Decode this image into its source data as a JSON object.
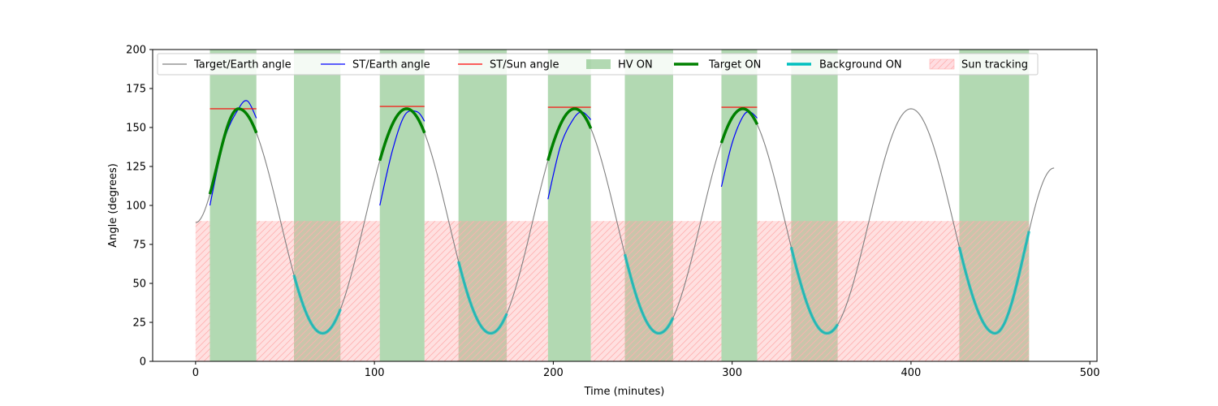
{
  "chart_data": {
    "type": "line",
    "title": "",
    "xlabel": "Time (minutes)",
    "ylabel": "Angle (degrees)",
    "xlim": [
      -24,
      504
    ],
    "ylim": [
      0,
      200
    ],
    "xticks": [
      0,
      100,
      200,
      300,
      400,
      500
    ],
    "yticks": [
      0,
      25,
      50,
      75,
      100,
      125,
      150,
      175,
      200
    ],
    "grid": false,
    "legend_position": "top",
    "target_earth_angle": {
      "name": "Target/Earth angle",
      "color": "#808080",
      "x": [
        0,
        24,
        71,
        118,
        165,
        212,
        259,
        306,
        353,
        400,
        447,
        480
      ],
      "y": [
        89,
        162,
        18,
        162,
        18,
        162,
        18,
        162,
        18,
        162,
        18,
        124
      ]
    },
    "st_earth_angle": {
      "name": "ST/Earth angle",
      "color": "#0000ff",
      "segments": [
        {
          "x": [
            8,
            16,
            24,
            29,
            34
          ],
          "y": [
            100,
            142,
            162,
            167,
            156
          ]
        },
        {
          "x": [
            103,
            110,
            117,
            124,
            128
          ],
          "y": [
            100,
            135,
            158,
            160,
            154
          ]
        },
        {
          "x": [
            197,
            204,
            211,
            216,
            221
          ],
          "y": [
            104,
            138,
            155,
            160,
            155
          ]
        },
        {
          "x": [
            294,
            300,
            306,
            310,
            314
          ],
          "y": [
            112,
            140,
            157,
            160,
            156
          ]
        }
      ]
    },
    "st_sun_angle": {
      "name": "ST/Sun angle",
      "color": "#ff0000",
      "segments": [
        {
          "x": [
            8,
            34
          ],
          "y": [
            162,
            162
          ]
        },
        {
          "x": [
            103,
            128
          ],
          "y": [
            163.5,
            163.5
          ]
        },
        {
          "x": [
            197,
            221
          ],
          "y": [
            163,
            163
          ]
        },
        {
          "x": [
            294,
            314
          ],
          "y": [
            163,
            163
          ]
        }
      ]
    },
    "hv_on": {
      "name": "HV ON",
      "color": "#008000",
      "intervals": [
        [
          8,
          34
        ],
        [
          55,
          81
        ],
        [
          103,
          128
        ],
        [
          147,
          174
        ],
        [
          197,
          221
        ],
        [
          240,
          267
        ],
        [
          294,
          314
        ],
        [
          333,
          359
        ],
        [
          427,
          466
        ]
      ]
    },
    "target_on": {
      "name": "Target ON",
      "color": "#008000",
      "intervals": [
        [
          8,
          34
        ],
        [
          103,
          128
        ],
        [
          197,
          221
        ],
        [
          294,
          314
        ]
      ]
    },
    "background_on": {
      "name": "Background ON",
      "color": "#00bfbf",
      "intervals": [
        [
          55,
          81
        ],
        [
          147,
          174
        ],
        [
          240,
          267
        ],
        [
          333,
          359
        ],
        [
          427,
          466
        ]
      ]
    },
    "sun_tracking": {
      "name": "Sun tracking",
      "color": "#ff9999",
      "y_level": 90,
      "intervals": [
        [
          0,
          8
        ],
        [
          34,
          103
        ],
        [
          128,
          197
        ],
        [
          221,
          294
        ],
        [
          314,
          466
        ]
      ]
    }
  }
}
